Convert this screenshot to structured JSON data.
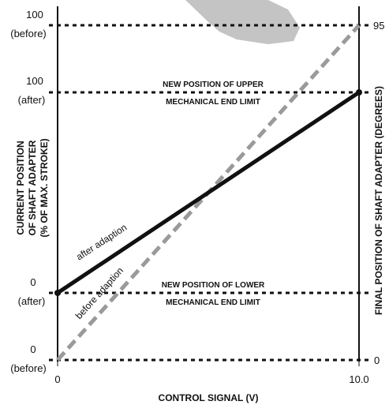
{
  "left_axis": {
    "title_lines": [
      "CURRENT POSITION",
      "OF SHAFT ADAPTER",
      "(% OF MAX. STROKE)"
    ],
    "ticks": [
      {
        "value": "100",
        "note": "(before)"
      },
      {
        "value": "100",
        "note": "(after)"
      },
      {
        "value": "0",
        "note": "(after)"
      },
      {
        "value": "0",
        "note": "(before)"
      }
    ]
  },
  "right_axis": {
    "title": "FINAL POSITION OF SHAFT ADAPTER (DEGREES)",
    "ticks": [
      "95",
      "0"
    ]
  },
  "x_axis": {
    "title": "CONTROL SIGNAL (V)",
    "ticks": [
      "0",
      "10.0"
    ]
  },
  "annotations": {
    "upper": [
      "NEW POSITION OF UPPER",
      "MECHANICAL END LIMIT"
    ],
    "lower": [
      "NEW POSITION OF LOWER",
      "MECHANICAL END LIMIT"
    ]
  },
  "lines": {
    "after": "after adaption",
    "before": "before adaption"
  },
  "colors": {
    "after_line": "#111111",
    "before_line": "#9a9a9a",
    "decor_shape": "#c4c4c4"
  }
}
